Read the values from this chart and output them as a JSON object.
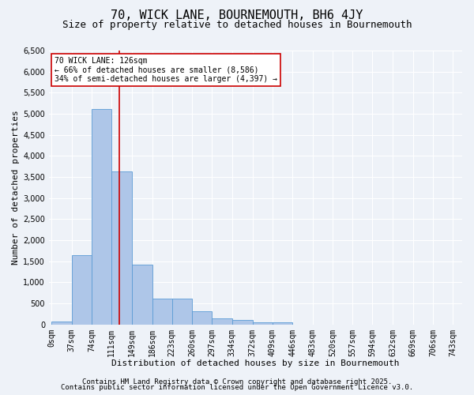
{
  "title": "70, WICK LANE, BOURNEMOUTH, BH6 4JY",
  "subtitle": "Size of property relative to detached houses in Bournemouth",
  "xlabel": "Distribution of detached houses by size in Bournemouth",
  "ylabel": "Number of detached properties",
  "footer_line1": "Contains HM Land Registry data © Crown copyright and database right 2025.",
  "footer_line2": "Contains public sector information licensed under the Open Government Licence v3.0.",
  "bar_edges": [
    0,
    37,
    74,
    111,
    149,
    186,
    223,
    260,
    297,
    334,
    372,
    409,
    446,
    483,
    520,
    557,
    594,
    632,
    669,
    706,
    743
  ],
  "bar_heights": [
    70,
    1640,
    5120,
    3630,
    1420,
    610,
    610,
    310,
    150,
    100,
    60,
    50,
    0,
    0,
    0,
    0,
    0,
    0,
    0,
    0
  ],
  "bar_color": "#aec6e8",
  "bar_edge_color": "#5b9bd5",
  "vline_x": 126,
  "vline_color": "#cc0000",
  "annotation_text": "70 WICK LANE: 126sqm\n← 66% of detached houses are smaller (8,586)\n34% of semi-detached houses are larger (4,397) →",
  "annotation_box_color": "#ffffff",
  "annotation_border_color": "#cc0000",
  "ylim": [
    0,
    6500
  ],
  "yticks": [
    0,
    500,
    1000,
    1500,
    2000,
    2500,
    3000,
    3500,
    4000,
    4500,
    5000,
    5500,
    6000,
    6500
  ],
  "bg_color": "#eef2f8",
  "plot_bg_color": "#eef2f8",
  "grid_color": "#ffffff",
  "title_fontsize": 11,
  "subtitle_fontsize": 9,
  "axis_label_fontsize": 8,
  "tick_fontsize": 7,
  "annotation_fontsize": 7,
  "footer_fontsize": 6.5
}
